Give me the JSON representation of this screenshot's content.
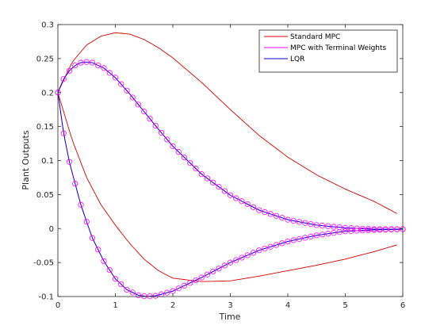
{
  "chart_data": {
    "type": "line",
    "xlabel": "Time",
    "ylabel": "Plant Outputs",
    "xlim": [
      0,
      6
    ],
    "ylim": [
      -0.1,
      0.3
    ],
    "xticks": [
      0,
      1,
      2,
      3,
      4,
      5,
      6
    ],
    "yticks": [
      -0.1,
      -0.05,
      0,
      0.05,
      0.1,
      0.15,
      0.2,
      0.25,
      0.3
    ],
    "xtick_labels": [
      "0",
      "1",
      "2",
      "3",
      "4",
      "5",
      "6"
    ],
    "ytick_labels": [
      "-0.1",
      "-0.05",
      "0",
      "0.05",
      "0.1",
      "0.15",
      "0.2",
      "0.25",
      "0.3"
    ],
    "legend_position": "top-right",
    "series": [
      {
        "name": "Standard MPC",
        "color": "#d40000",
        "curves": [
          {
            "x": [
              0,
              0.25,
              0.5,
              0.75,
              1,
              1.25,
              1.5,
              1.75,
              2,
              2.5,
              3,
              3.5,
              4,
              4.5,
              5,
              5.5,
              5.9
            ],
            "y": [
              0.2,
              0.245,
              0.27,
              0.283,
              0.288,
              0.286,
              0.278,
              0.266,
              0.251,
              0.215,
              0.175,
              0.137,
              0.105,
              0.079,
              0.058,
              0.04,
              0.022
            ]
          },
          {
            "x": [
              0,
              0.25,
              0.5,
              0.75,
              1,
              1.25,
              1.5,
              1.75,
              2,
              2.5,
              3,
              3.5,
              4,
              4.5,
              5,
              5.5,
              5.9
            ],
            "y": [
              0.2,
              0.13,
              0.075,
              0.035,
              0.005,
              -0.022,
              -0.045,
              -0.062,
              -0.073,
              -0.078,
              -0.077,
              -0.07,
              -0.062,
              -0.054,
              -0.045,
              -0.034,
              -0.024
            ]
          }
        ]
      },
      {
        "name": "MPC with Terminal Weights",
        "color": "#ff00ff",
        "curves": [
          {
            "x": [
              0,
              0.1,
              0.2,
              0.3,
              0.4,
              0.5,
              0.6,
              0.8,
              1,
              1.25,
              1.5,
              1.75,
              2,
              2.5,
              3,
              3.5,
              4,
              4.5,
              5,
              5.5,
              6
            ],
            "y": [
              0.2,
              0.22,
              0.232,
              0.24,
              0.244,
              0.245,
              0.244,
              0.236,
              0.222,
              0.198,
              0.172,
              0.146,
              0.121,
              0.08,
              0.049,
              0.027,
              0.013,
              0.005,
              0.001,
              -0.001,
              -0.001
            ]
          },
          {
            "x": [
              0,
              0.1,
              0.2,
              0.3,
              0.4,
              0.5,
              0.6,
              0.8,
              1,
              1.2,
              1.4,
              1.55,
              1.7,
              2,
              2.5,
              3,
              3.5,
              4,
              4.5,
              5,
              5.5,
              6
            ],
            "y": [
              0.2,
              0.14,
              0.098,
              0.066,
              0.035,
              0.01,
              -0.014,
              -0.048,
              -0.074,
              -0.09,
              -0.098,
              -0.1,
              -0.099,
              -0.092,
              -0.072,
              -0.05,
              -0.032,
              -0.019,
              -0.01,
              -0.004,
              -0.002,
              -0.001
            ]
          }
        ]
      },
      {
        "name": "LQR",
        "color": "#0000cc",
        "curves": [
          {
            "x": [
              0,
              0.1,
              0.2,
              0.3,
              0.4,
              0.5,
              0.6,
              0.8,
              1,
              1.25,
              1.5,
              1.75,
              2,
              2.5,
              3,
              3.5,
              4,
              4.5,
              5,
              5.5,
              6
            ],
            "y": [
              0.2,
              0.22,
              0.232,
              0.24,
              0.244,
              0.245,
              0.244,
              0.236,
              0.222,
              0.198,
              0.172,
              0.146,
              0.121,
              0.08,
              0.049,
              0.027,
              0.013,
              0.005,
              0.001,
              -0.001,
              -0.001
            ]
          },
          {
            "x": [
              0,
              0.1,
              0.2,
              0.3,
              0.4,
              0.5,
              0.6,
              0.8,
              1,
              1.2,
              1.4,
              1.55,
              1.7,
              2,
              2.5,
              3,
              3.5,
              4,
              4.5,
              5,
              5.5,
              6
            ],
            "y": [
              0.2,
              0.14,
              0.098,
              0.066,
              0.035,
              0.01,
              -0.014,
              -0.048,
              -0.074,
              -0.09,
              -0.098,
              -0.1,
              -0.099,
              -0.092,
              -0.072,
              -0.05,
              -0.032,
              -0.019,
              -0.01,
              -0.004,
              -0.002,
              -0.001
            ]
          }
        ]
      }
    ],
    "marker_series": "MPC with Terminal Weights",
    "marker_step": 0.1,
    "marker_style": "circle"
  }
}
